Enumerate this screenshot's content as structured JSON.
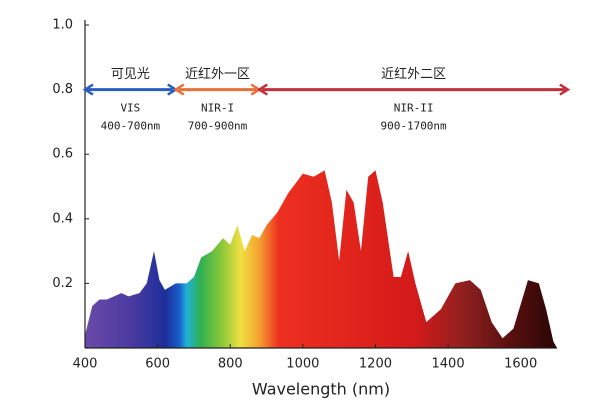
{
  "chart_data": {
    "type": "area",
    "x_label": "Wavelength (nm)",
    "x": [
      400,
      420,
      440,
      460,
      480,
      500,
      520,
      550,
      570,
      590,
      605,
      620,
      650,
      680,
      700,
      720,
      750,
      780,
      800,
      820,
      840,
      860,
      880,
      900,
      930,
      960,
      1000,
      1030,
      1060,
      1080,
      1100,
      1120,
      1140,
      1160,
      1180,
      1200,
      1220,
      1250,
      1270,
      1290,
      1310,
      1340,
      1380,
      1420,
      1460,
      1490,
      1520,
      1550,
      1580,
      1620,
      1650,
      1670,
      1690,
      1700
    ],
    "values": [
      0.04,
      0.13,
      0.15,
      0.15,
      0.16,
      0.17,
      0.16,
      0.17,
      0.2,
      0.3,
      0.21,
      0.18,
      0.2,
      0.2,
      0.22,
      0.28,
      0.3,
      0.34,
      0.32,
      0.38,
      0.3,
      0.35,
      0.34,
      0.38,
      0.42,
      0.48,
      0.54,
      0.53,
      0.55,
      0.45,
      0.27,
      0.49,
      0.45,
      0.3,
      0.53,
      0.55,
      0.45,
      0.22,
      0.22,
      0.3,
      0.2,
      0.08,
      0.12,
      0.2,
      0.21,
      0.18,
      0.08,
      0.03,
      0.06,
      0.21,
      0.2,
      0.12,
      0.02,
      0
    ],
    "xlim": [
      400,
      1700
    ],
    "xticks": [
      400,
      600,
      800,
      1000,
      1200,
      1400,
      1600
    ],
    "ylim": [
      0,
      1
    ],
    "yticks": [
      0.2,
      0.4,
      0.6,
      0.8,
      {
        "value": 1,
        "label": "1.0"
      }
    ],
    "regions": [
      {
        "label": "可见光",
        "name": "VIS",
        "range": "400-700nm",
        "start": 400,
        "end": 650,
        "color": "#2a5fc0"
      },
      {
        "label": "近红外一区",
        "name": "NIR-I",
        "range": "700-900nm",
        "start": 650,
        "end": 880,
        "color": "#e8703a"
      },
      {
        "label": "近红外二区",
        "name": "NIR-II",
        "range": "900-1700nm",
        "start": 880,
        "end": 1730,
        "color": "#c0303a"
      }
    ],
    "region_level": 0.8
  }
}
